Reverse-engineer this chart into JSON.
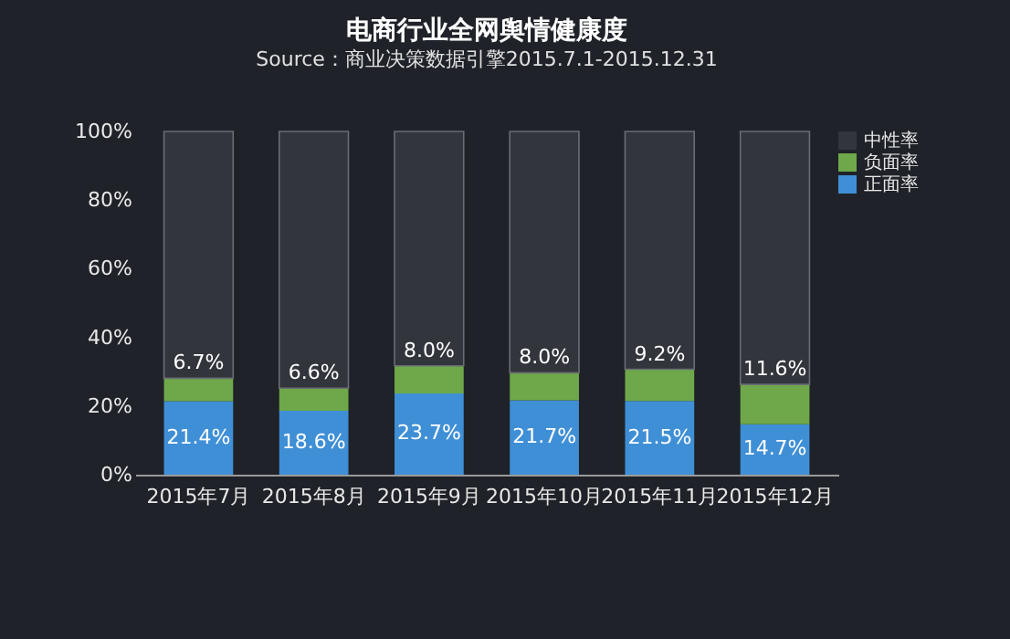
{
  "chart_data": {
    "type": "bar",
    "stacked": true,
    "title": "电商行业全网舆情健康度",
    "subtitle": "Source：商业决策数据引擎2015.7.1-2015.12.31",
    "categories": [
      "2015年7月",
      "2015年8月",
      "2015年9月",
      "2015年10月",
      "2015年11月",
      "2015年12月"
    ],
    "series": [
      {
        "name": "正面率",
        "color": "#3f8fd6",
        "values": [
          21.4,
          18.6,
          23.7,
          21.7,
          21.5,
          14.7
        ],
        "value_labels": [
          "21.4%",
          "18.6%",
          "23.7%",
          "21.7%",
          "21.5%",
          "14.7%"
        ]
      },
      {
        "name": "负面率",
        "color": "#6ea84a",
        "values": [
          6.7,
          6.6,
          8.0,
          8.0,
          9.2,
          11.6
        ],
        "value_labels": [
          "6.7%",
          "6.6%",
          "8.0%",
          "8.0%",
          "9.2%",
          "11.6%"
        ]
      },
      {
        "name": "中性率",
        "color": "#32353c",
        "values": [
          71.9,
          74.8,
          68.3,
          70.3,
          69.3,
          73.7
        ]
      }
    ],
    "ylim": [
      0,
      100
    ],
    "yticks": [
      {
        "value": 0,
        "label": "0%"
      },
      {
        "value": 20,
        "label": "20%"
      },
      {
        "value": 40,
        "label": "40%"
      },
      {
        "value": 60,
        "label": "60%"
      },
      {
        "value": 80,
        "label": "80%"
      },
      {
        "value": 100,
        "label": "100%"
      }
    ],
    "legend": "top right"
  }
}
